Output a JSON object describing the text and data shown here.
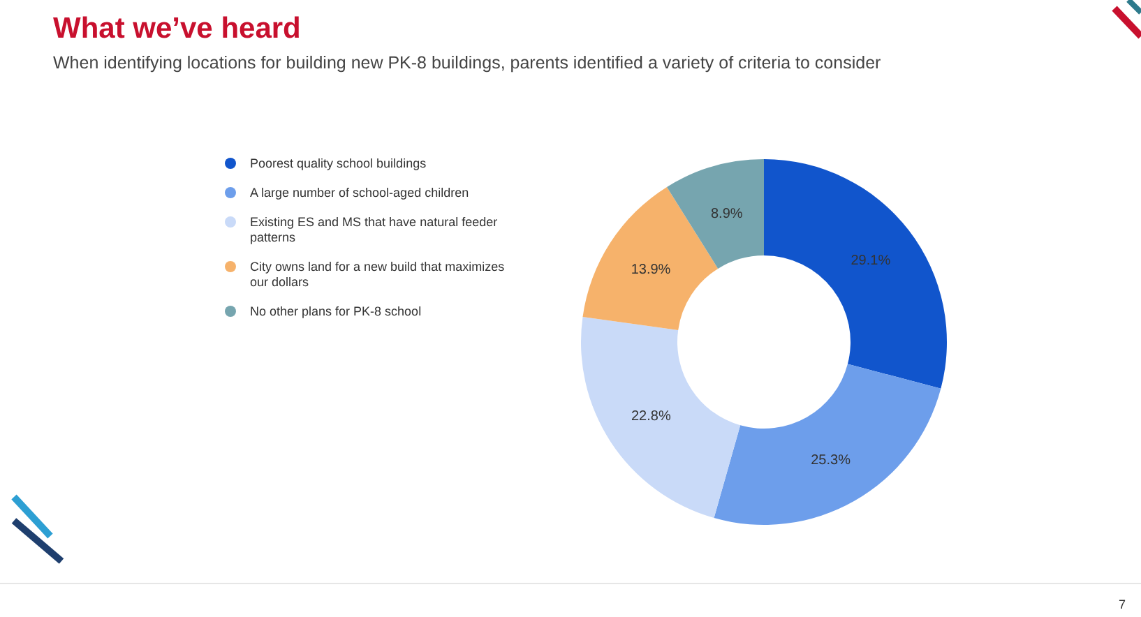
{
  "chart_data": {
    "type": "donut",
    "title": "What we’ve heard",
    "subtitle": "When identifying locations for building new PK-8 buildings, parents identified a variety of criteria to consider",
    "categories": [
      "Poorest quality school buildings",
      "A large number of school-aged children",
      "Existing ES and MS that have natural feeder patterns",
      "City owns land for a new build that maximizes our dollars",
      "No other plans for PK-8 school"
    ],
    "values": [
      29.1,
      25.3,
      22.8,
      13.9,
      8.9
    ],
    "colors": [
      "#1155cc",
      "#6d9eeb",
      "#c9daf8",
      "#f6b26b",
      "#76a5af"
    ],
    "value_labels": [
      "29.1%",
      "25.3%",
      "22.8%",
      "13.9%",
      "8.9%"
    ],
    "legend": "left",
    "annotations": [
      "7"
    ]
  }
}
